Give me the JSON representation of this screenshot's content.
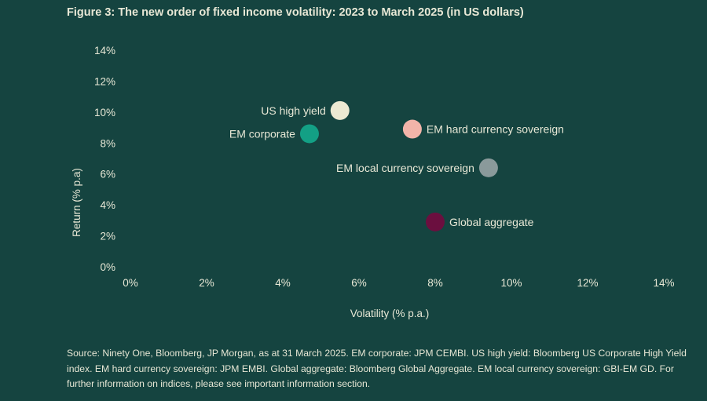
{
  "title": "Figure 3: The new order of fixed income volatility: 2023 to March 2025 (in US dollars)",
  "source": "Source: Ninety One, Bloomberg, JP Morgan, as at 31 March 2025. EM corporate: JPM CEMBI. US high yield: Bloomberg US Corporate High Yield index. EM hard currency sovereign: JPM EMBI. Global aggregate: Bloomberg Global Aggregate. EM local currency sovereign: GBI-EM GD. For further information on indices, please see important information section.",
  "chart_data": {
    "type": "scatter",
    "xlabel": "Volatility (% p.a.)",
    "ylabel": "Return (% p.a)",
    "xlim": [
      0,
      14
    ],
    "ylim": [
      0,
      14
    ],
    "xticks": [
      "0%",
      "2%",
      "4%",
      "6%",
      "8%",
      "10%",
      "12%",
      "14%"
    ],
    "yticks": [
      "0%",
      "2%",
      "4%",
      "6%",
      "8%",
      "10%",
      "12%",
      "14%"
    ],
    "grid": false,
    "points": [
      {
        "label": "US high yield",
        "x": 5.5,
        "y": 10.1,
        "color": "#ece9d2",
        "label_side": "left"
      },
      {
        "label": "EM corporate",
        "x": 4.7,
        "y": 8.6,
        "color": "#13a085",
        "label_side": "left"
      },
      {
        "label": "EM hard currency sovereign",
        "x": 7.4,
        "y": 8.9,
        "color": "#f2b4a9",
        "label_side": "right"
      },
      {
        "label": "EM local currency sovereign",
        "x": 9.4,
        "y": 6.4,
        "color": "#8a9a9b",
        "label_side": "left"
      },
      {
        "label": "Global aggregate",
        "x": 8.0,
        "y": 2.9,
        "color": "#6b0f3f",
        "label_side": "right"
      }
    ]
  },
  "colors": {
    "background": "#154440",
    "text": "#e8e8d6"
  }
}
